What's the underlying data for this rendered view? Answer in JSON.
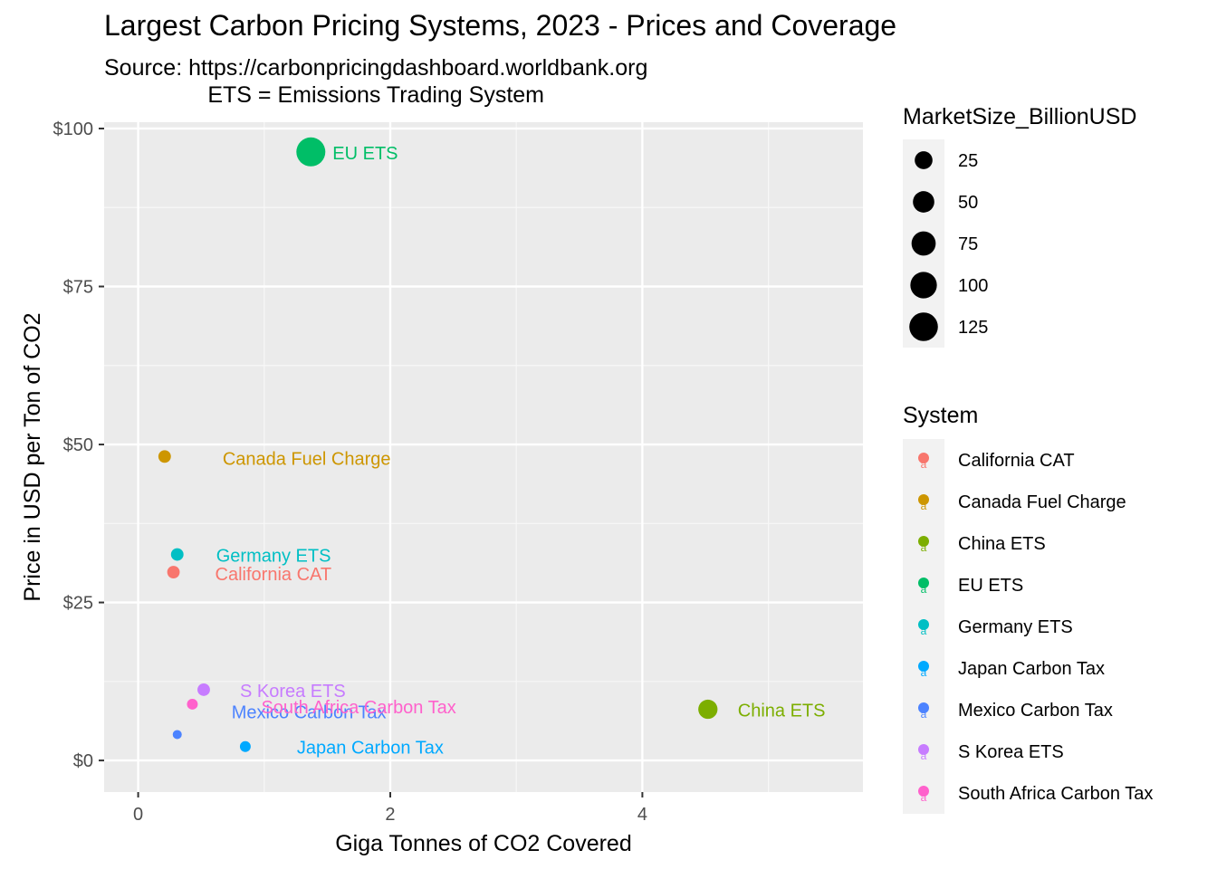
{
  "chart_data": {
    "type": "scatter",
    "title": "Largest Carbon Pricing Systems, 2023 - Prices and Coverage",
    "subtitle_lines": [
      "Source: https://carbonpricingdashboard.worldbank.org",
      "ETS = Emissions Trading System"
    ],
    "xlabel": "Giga Tonnes of CO2 Covered",
    "ylabel": "Price in USD per Ton of CO2",
    "xlim": [
      -0.27,
      5.75
    ],
    "ylim": [
      -5,
      101
    ],
    "x_ticks": [
      0,
      2,
      4
    ],
    "x_tick_labels": [
      "0",
      "2",
      "4"
    ],
    "y_ticks": [
      0,
      25,
      50,
      75,
      100
    ],
    "y_tick_labels": [
      "$0",
      "$25",
      "$50",
      "$75",
      "$100"
    ],
    "grid": true,
    "legend_placement": "right",
    "size_legend": {
      "title": "MarketSize_BillionUSD",
      "values": [
        25,
        50,
        75,
        100,
        125
      ],
      "labels": [
        "25",
        "50",
        "75",
        "100",
        "125"
      ]
    },
    "color_legend": {
      "title": "System",
      "key_glyph": "a"
    },
    "series": [
      {
        "name": "California CAT",
        "color": "#F8766D",
        "x": 0.28,
        "y": 29.8,
        "size": 4
      },
      {
        "name": "Canada Fuel Charge",
        "color": "#CD9600",
        "x": 0.21,
        "y": 48.1,
        "size": 4
      },
      {
        "name": "China ETS",
        "color": "#7CAE00",
        "x": 4.52,
        "y": 8.1,
        "size": 34
      },
      {
        "name": "EU ETS",
        "color": "#00BE67",
        "x": 1.37,
        "y": 96.3,
        "size": 130
      },
      {
        "name": "Germany ETS",
        "color": "#00BFC4",
        "x": 0.31,
        "y": 32.6,
        "size": 4
      },
      {
        "name": "Japan Carbon Tax",
        "color": "#00A9FF",
        "x": 0.85,
        "y": 2.2,
        "size": 1
      },
      {
        "name": "Mexico Carbon Tax",
        "color": "#4C83FF",
        "x": 0.31,
        "y": 4.1,
        "size": 0
      },
      {
        "name": "S Korea ETS",
        "color": "#C77CFF",
        "x": 0.52,
        "y": 11.2,
        "size": 4
      },
      {
        "name": "South Africa Carbon Tax",
        "color": "#FF61CC",
        "x": 0.43,
        "y": 8.9,
        "size": 1
      }
    ],
    "point_label_order": [
      "California CAT",
      "Canada Fuel Charge",
      "China ETS",
      "EU ETS",
      "Germany ETS",
      "Japan Carbon Tax",
      "Mexico Carbon Tax",
      "S Korea ETS",
      "South Africa Carbon Tax"
    ]
  }
}
